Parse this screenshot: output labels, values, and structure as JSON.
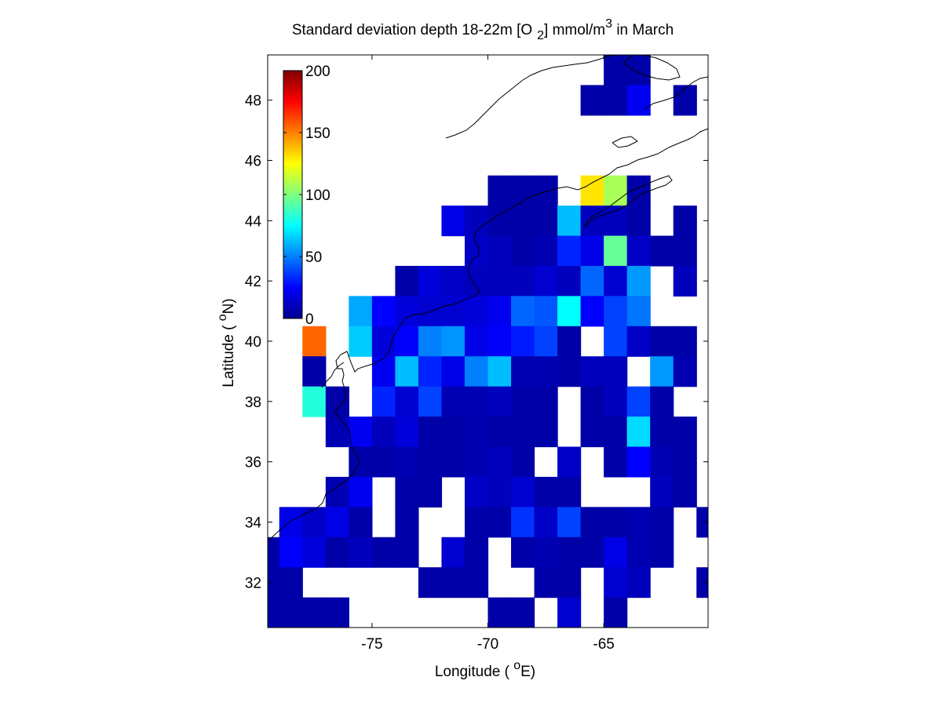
{
  "chart_data": {
    "type": "heatmap",
    "title": {
      "prefix": "Standard deviation depth 18-22m [O",
      "sub": "2",
      "middle": "] mmol/m",
      "sup": "3",
      "suffix": " in March"
    },
    "xlabel": {
      "prefix": "Longitude ( ",
      "sup": "o",
      "suffix": "E)"
    },
    "ylabel": {
      "prefix": "Latitude ( ",
      "sup": "o",
      "suffix": "N)"
    },
    "xlim": [
      -79.5,
      -60.5
    ],
    "ylim": [
      30.5,
      49.5
    ],
    "cell_size_deg": 1,
    "x_ticks": [
      {
        "value": -75,
        "label": "-75"
      },
      {
        "value": -70,
        "label": "-70"
      },
      {
        "value": -65,
        "label": "-65"
      }
    ],
    "y_ticks": [
      {
        "value": 32,
        "label": "32"
      },
      {
        "value": 34,
        "label": "34"
      },
      {
        "value": 36,
        "label": "36"
      },
      {
        "value": 38,
        "label": "38"
      },
      {
        "value": 40,
        "label": "40"
      },
      {
        "value": 42,
        "label": "42"
      },
      {
        "value": 44,
        "label": "44"
      },
      {
        "value": 46,
        "label": "46"
      },
      {
        "value": 48,
        "label": "48"
      }
    ],
    "colorbar": {
      "colormap": "jet",
      "range": [
        0,
        200
      ],
      "placement": "top-left inside axes",
      "ticks": [
        {
          "value": 0,
          "label": "0"
        },
        {
          "value": 50,
          "label": "50"
        },
        {
          "value": 100,
          "label": "100"
        },
        {
          "value": 150,
          "label": "150"
        },
        {
          "value": 200,
          "label": "200"
        }
      ]
    },
    "grid": false,
    "coastline_color": "#000000",
    "rows_start_lat": 49,
    "row_step_lat": -1,
    "rows": [
      {
        "lat": 49,
        "lon_start": -64.5,
        "values": [
          8,
          8
        ]
      },
      {
        "lat": 48,
        "lon_start": -65.5,
        "values": [
          8,
          8,
          22,
          null,
          8
        ]
      },
      {
        "lat": 45,
        "lon_start": -69.5,
        "values": [
          8,
          8,
          8,
          null,
          130,
          108,
          8
        ]
      },
      {
        "lat": 44,
        "lon_start": -71.5,
        "values": [
          20,
          12,
          8,
          8,
          8,
          62,
          12,
          12,
          8,
          null,
          8
        ]
      },
      {
        "lat": 43,
        "lon_start": -70.5,
        "values": [
          14,
          12,
          8,
          10,
          32,
          20,
          95,
          14,
          8,
          8
        ]
      },
      {
        "lat": 42,
        "lon_start": -73.5,
        "values": [
          8,
          18,
          14,
          12,
          12,
          12,
          16,
          12,
          45,
          16,
          55,
          null,
          12
        ]
      },
      {
        "lat": 41,
        "lon_start": -75.5,
        "values": [
          58,
          25,
          18,
          16,
          16,
          18,
          22,
          45,
          42,
          75,
          24,
          38,
          48,
          null
        ]
      },
      {
        "lat": 40,
        "lon_start": -77.5,
        "values": [
          155,
          null,
          65,
          18,
          24,
          50,
          54,
          20,
          24,
          30,
          38,
          8,
          null,
          38,
          14,
          8,
          8
        ]
      },
      {
        "lat": 39,
        "lon_start": -77.5,
        "values": [
          8,
          null,
          null,
          22,
          62,
          32,
          20,
          50,
          62,
          10,
          10,
          8,
          12,
          12,
          null,
          55,
          10,
          null,
          14
        ]
      },
      {
        "lat": 38,
        "lon_start": -77.5,
        "values": [
          82,
          8,
          null,
          32,
          16,
          38,
          10,
          10,
          12,
          8,
          8,
          null,
          8,
          12,
          38,
          8,
          null
        ]
      },
      {
        "lat": 37,
        "lon_start": -76.5,
        "values": [
          10,
          22,
          12,
          18,
          8,
          8,
          10,
          8,
          8,
          8,
          null,
          8,
          8,
          68,
          8,
          8
        ]
      },
      {
        "lat": 36,
        "lon_start": -75.5,
        "values": [
          8,
          8,
          10,
          8,
          8,
          10,
          12,
          8,
          null,
          14,
          null,
          8,
          25,
          10,
          8
        ]
      },
      {
        "lat": 35,
        "lon_start": -76.5,
        "values": [
          10,
          22,
          null,
          8,
          8,
          null,
          14,
          12,
          16,
          8,
          8,
          null,
          null,
          null,
          12,
          8,
          null
        ]
      },
      {
        "lat": 34,
        "lon_start": -78.5,
        "values": [
          20,
          14,
          20,
          8,
          null,
          8,
          null,
          null,
          8,
          8,
          35,
          14,
          38,
          8,
          8,
          10,
          8,
          null,
          8
        ]
      },
      {
        "lat": 33,
        "lon_start": -79.5,
        "values": [
          8,
          24,
          18,
          8,
          12,
          8,
          8,
          null,
          16,
          8,
          null,
          8,
          10,
          8,
          8,
          20,
          10,
          8,
          null,
          null
        ]
      },
      {
        "lat": 32,
        "lon_start": -79.5,
        "values": [
          8,
          8,
          null,
          null,
          null,
          null,
          null,
          8,
          8,
          8,
          null,
          null,
          8,
          8,
          null,
          16,
          12,
          null,
          null,
          8
        ]
      },
      {
        "lat": 31,
        "lon_start": -79.5,
        "values": [
          8,
          8,
          8,
          8,
          null,
          null,
          null,
          null,
          null,
          null,
          8,
          8,
          null,
          16,
          null,
          8,
          null,
          null,
          null,
          null
        ]
      }
    ]
  }
}
